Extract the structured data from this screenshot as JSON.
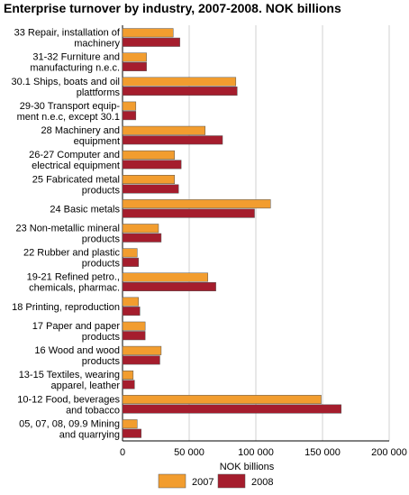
{
  "chart_data": {
    "type": "bar",
    "orientation": "horizontal",
    "title": "Enterprise turnover by industry, 2007-2008. NOK billions",
    "xlabel": "NOK billions",
    "ylabel": "",
    "xlim": [
      0,
      200000
    ],
    "xticks": [
      "0",
      "50 000",
      "100 000",
      "150 000",
      "200 000"
    ],
    "grid": true,
    "legend_position": "bottom",
    "categories": [
      [
        "33 Repair, installation of",
        "machinery"
      ],
      [
        "31-32 Furniture and",
        "manufacturing n.e.c."
      ],
      [
        "30.1 Ships, boats and oil",
        "plattforms"
      ],
      [
        "29-30 Transport equip-",
        "ment n.e.c, except 30.1"
      ],
      [
        "28 Machinery and",
        "equipment"
      ],
      [
        "26-27 Computer and",
        "electrical equipment"
      ],
      [
        "25 Fabricated metal",
        "products"
      ],
      [
        "24 Basic metals"
      ],
      [
        "23 Non-metallic mineral",
        "products"
      ],
      [
        "22 Rubber and plastic",
        "products"
      ],
      [
        "19-21 Refined petro.,",
        "chemicals, pharmac."
      ],
      [
        "18 Printing, reproduction"
      ],
      [
        "17 Paper and paper",
        "products"
      ],
      [
        "16 Wood and wood",
        "products"
      ],
      [
        "13-15 Textiles, wearing",
        "apparel, leather"
      ],
      [
        "10-12 Food, beverages",
        "and tobacco"
      ],
      [
        "05, 07, 08, 09.9 Mining",
        "and quarrying"
      ]
    ],
    "series": [
      {
        "name": "2007",
        "color": "#f29d2f",
        "values": [
          38000,
          18000,
          85000,
          10000,
          62000,
          39000,
          39000,
          111000,
          27000,
          11000,
          64000,
          12000,
          17000,
          29000,
          8000,
          149000,
          11000
        ]
      },
      {
        "name": "2008",
        "color": "#a51d2d",
        "values": [
          43000,
          18000,
          86000,
          10000,
          75000,
          44000,
          42000,
          99000,
          29000,
          12000,
          70000,
          13000,
          17000,
          28000,
          9000,
          164000,
          14000
        ]
      }
    ]
  }
}
